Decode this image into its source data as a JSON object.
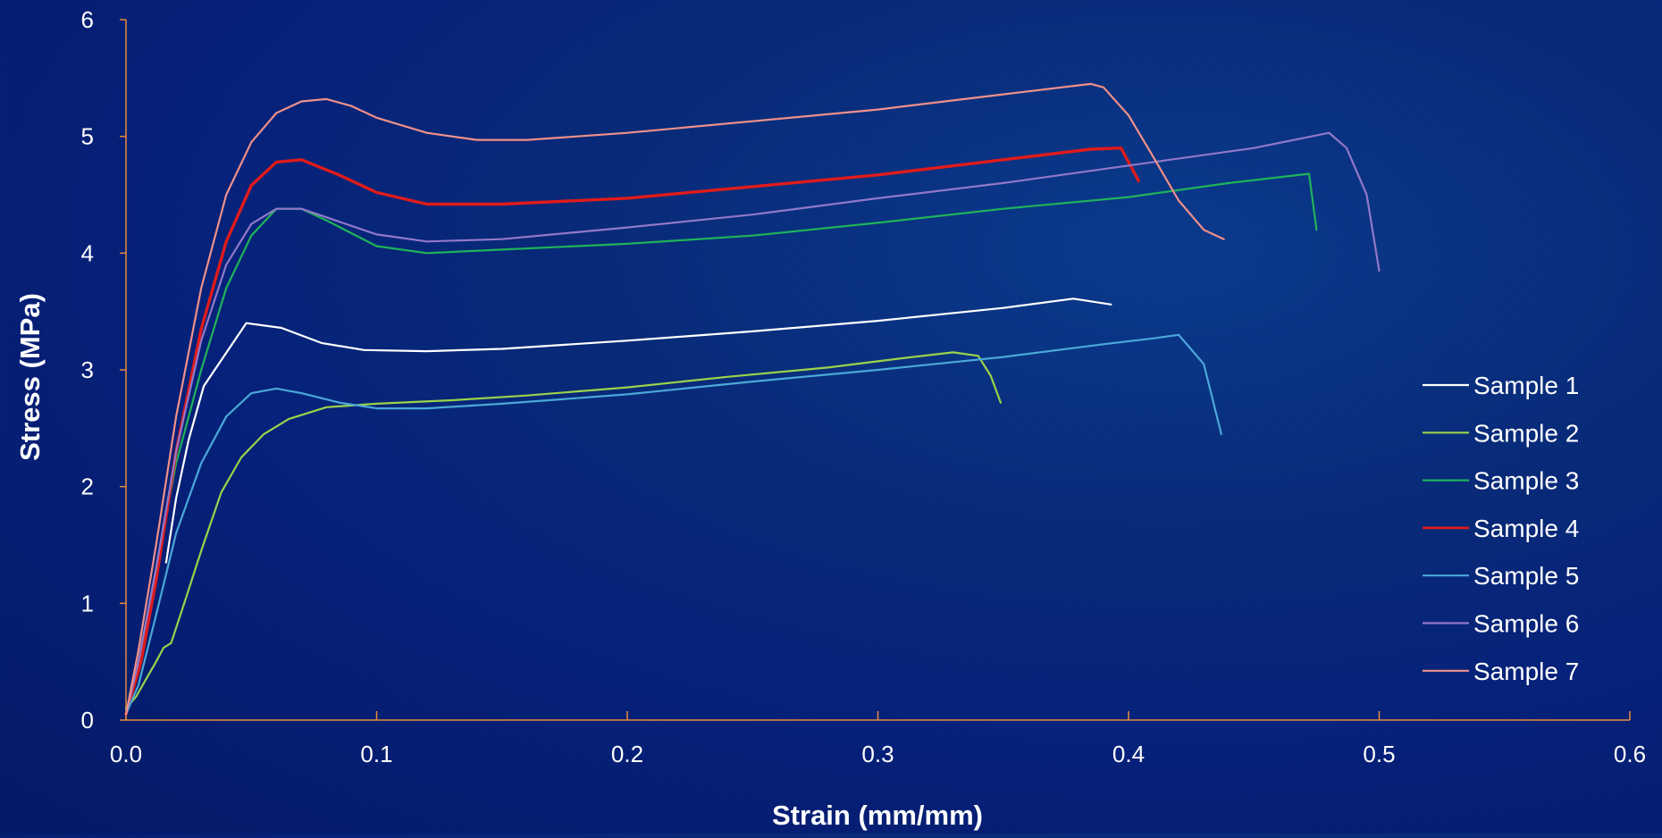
{
  "chart_data": {
    "type": "line",
    "title": "",
    "xlabel": "Strain (mm/mm)",
    "ylabel": "Stress (MPa)",
    "xlim": [
      0,
      0.6
    ],
    "ylim": [
      0,
      6
    ],
    "x_ticks": [
      "0.0",
      "0.1",
      "0.2",
      "0.3",
      "0.4",
      "0.5",
      "0.6"
    ],
    "y_ticks": [
      "0",
      "1",
      "2",
      "3",
      "4",
      "5",
      "6"
    ],
    "grid": false,
    "legend_position": "right",
    "axis_color": "#e88a3a",
    "series": [
      {
        "name": "Sample 1",
        "color": "#ffffff",
        "width": 2.2,
        "points": [
          [
            0.016,
            1.35
          ],
          [
            0.02,
            1.9
          ],
          [
            0.025,
            2.4
          ],
          [
            0.031,
            2.86
          ],
          [
            0.048,
            3.4
          ],
          [
            0.062,
            3.36
          ],
          [
            0.078,
            3.23
          ],
          [
            0.095,
            3.17
          ],
          [
            0.12,
            3.16
          ],
          [
            0.15,
            3.18
          ],
          [
            0.2,
            3.25
          ],
          [
            0.25,
            3.33
          ],
          [
            0.3,
            3.42
          ],
          [
            0.35,
            3.53
          ],
          [
            0.378,
            3.61
          ],
          [
            0.393,
            3.56
          ]
        ]
      },
      {
        "name": "Sample 2",
        "color": "#9bd34a",
        "width": 2.2,
        "points": [
          [
            0,
            0.1
          ],
          [
            0.004,
            0.2
          ],
          [
            0.008,
            0.35
          ],
          [
            0.012,
            0.5
          ],
          [
            0.015,
            0.62
          ],
          [
            0.018,
            0.66
          ],
          [
            0.024,
            1.05
          ],
          [
            0.03,
            1.45
          ],
          [
            0.038,
            1.95
          ],
          [
            0.046,
            2.25
          ],
          [
            0.055,
            2.45
          ],
          [
            0.065,
            2.58
          ],
          [
            0.08,
            2.68
          ],
          [
            0.1,
            2.71
          ],
          [
            0.13,
            2.74
          ],
          [
            0.16,
            2.78
          ],
          [
            0.2,
            2.85
          ],
          [
            0.24,
            2.94
          ],
          [
            0.28,
            3.02
          ],
          [
            0.31,
            3.1
          ],
          [
            0.33,
            3.15
          ],
          [
            0.34,
            3.12
          ],
          [
            0.345,
            2.95
          ],
          [
            0.349,
            2.72
          ]
        ]
      },
      {
        "name": "Sample 3",
        "color": "#1fb35a",
        "width": 2.2,
        "points": [
          [
            0,
            0.05
          ],
          [
            0.005,
            0.5
          ],
          [
            0.012,
            1.3
          ],
          [
            0.02,
            2.2
          ],
          [
            0.03,
            3.0
          ],
          [
            0.04,
            3.7
          ],
          [
            0.05,
            4.15
          ],
          [
            0.06,
            4.38
          ],
          [
            0.07,
            4.38
          ],
          [
            0.08,
            4.28
          ],
          [
            0.1,
            4.06
          ],
          [
            0.12,
            4.0
          ],
          [
            0.15,
            4.03
          ],
          [
            0.2,
            4.08
          ],
          [
            0.25,
            4.15
          ],
          [
            0.3,
            4.26
          ],
          [
            0.35,
            4.38
          ],
          [
            0.4,
            4.48
          ],
          [
            0.44,
            4.6
          ],
          [
            0.472,
            4.68
          ],
          [
            0.475,
            4.2
          ]
        ]
      },
      {
        "name": "Sample 4",
        "color": "#e01b1b",
        "width": 3.4,
        "points": [
          [
            0,
            0.05
          ],
          [
            0.006,
            0.5
          ],
          [
            0.012,
            1.2
          ],
          [
            0.02,
            2.3
          ],
          [
            0.03,
            3.35
          ],
          [
            0.04,
            4.1
          ],
          [
            0.05,
            4.58
          ],
          [
            0.06,
            4.78
          ],
          [
            0.07,
            4.8
          ],
          [
            0.085,
            4.67
          ],
          [
            0.1,
            4.52
          ],
          [
            0.12,
            4.42
          ],
          [
            0.15,
            4.42
          ],
          [
            0.2,
            4.47
          ],
          [
            0.25,
            4.57
          ],
          [
            0.3,
            4.67
          ],
          [
            0.35,
            4.8
          ],
          [
            0.385,
            4.89
          ],
          [
            0.397,
            4.9
          ],
          [
            0.404,
            4.62
          ]
        ]
      },
      {
        "name": "Sample 5",
        "color": "#4aa8d8",
        "width": 2.2,
        "points": [
          [
            0,
            0.05
          ],
          [
            0.005,
            0.3
          ],
          [
            0.012,
            0.9
          ],
          [
            0.02,
            1.6
          ],
          [
            0.03,
            2.2
          ],
          [
            0.04,
            2.6
          ],
          [
            0.05,
            2.8
          ],
          [
            0.06,
            2.84
          ],
          [
            0.07,
            2.8
          ],
          [
            0.085,
            2.72
          ],
          [
            0.1,
            2.67
          ],
          [
            0.12,
            2.67
          ],
          [
            0.15,
            2.71
          ],
          [
            0.2,
            2.79
          ],
          [
            0.25,
            2.9
          ],
          [
            0.3,
            3.0
          ],
          [
            0.35,
            3.11
          ],
          [
            0.39,
            3.22
          ],
          [
            0.41,
            3.27
          ],
          [
            0.42,
            3.3
          ],
          [
            0.43,
            3.05
          ],
          [
            0.437,
            2.45
          ]
        ]
      },
      {
        "name": "Sample 6",
        "color": "#9278c9",
        "width": 2.2,
        "points": [
          [
            0,
            0.05
          ],
          [
            0.005,
            0.5
          ],
          [
            0.012,
            1.3
          ],
          [
            0.02,
            2.3
          ],
          [
            0.03,
            3.25
          ],
          [
            0.04,
            3.9
          ],
          [
            0.05,
            4.25
          ],
          [
            0.06,
            4.38
          ],
          [
            0.07,
            4.38
          ],
          [
            0.085,
            4.27
          ],
          [
            0.1,
            4.16
          ],
          [
            0.12,
            4.1
          ],
          [
            0.15,
            4.12
          ],
          [
            0.2,
            4.22
          ],
          [
            0.25,
            4.33
          ],
          [
            0.3,
            4.47
          ],
          [
            0.35,
            4.6
          ],
          [
            0.4,
            4.75
          ],
          [
            0.45,
            4.9
          ],
          [
            0.48,
            5.03
          ],
          [
            0.487,
            4.9
          ],
          [
            0.495,
            4.5
          ],
          [
            0.5,
            3.85
          ]
        ]
      },
      {
        "name": "Sample 7",
        "color": "#f0908a",
        "width": 2.2,
        "points": [
          [
            0,
            0.05
          ],
          [
            0.005,
            0.6
          ],
          [
            0.012,
            1.5
          ],
          [
            0.02,
            2.6
          ],
          [
            0.03,
            3.7
          ],
          [
            0.04,
            4.5
          ],
          [
            0.05,
            4.95
          ],
          [
            0.06,
            5.2
          ],
          [
            0.07,
            5.3
          ],
          [
            0.08,
            5.32
          ],
          [
            0.09,
            5.26
          ],
          [
            0.1,
            5.16
          ],
          [
            0.12,
            5.03
          ],
          [
            0.14,
            4.97
          ],
          [
            0.16,
            4.97
          ],
          [
            0.2,
            5.03
          ],
          [
            0.25,
            5.13
          ],
          [
            0.3,
            5.23
          ],
          [
            0.35,
            5.36
          ],
          [
            0.385,
            5.45
          ],
          [
            0.39,
            5.42
          ],
          [
            0.4,
            5.18
          ],
          [
            0.41,
            4.82
          ],
          [
            0.42,
            4.45
          ],
          [
            0.43,
            4.2
          ],
          [
            0.438,
            4.12
          ]
        ]
      }
    ]
  }
}
